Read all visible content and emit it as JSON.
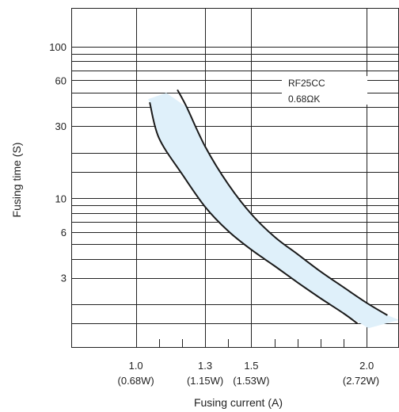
{
  "chart_data": {
    "type": "line",
    "xlabel": "Fusing current (A)",
    "ylabel": "Fusing time (S)",
    "x_scale": "linear",
    "y_scale": "log",
    "xlim": [
      0.72,
      2.14
    ],
    "ylim": [
      1.05,
      180
    ],
    "x_ticks": [
      {
        "value": 1.0,
        "label": "1.0",
        "sublabel": "(0.68W)"
      },
      {
        "value": 1.3,
        "label": "1.3",
        "sublabel": "(1.15W)"
      },
      {
        "value": 1.5,
        "label": "1.5",
        "sublabel": "(1.53W)"
      },
      {
        "value": 2.0,
        "label": "2.0",
        "sublabel": "(2.72W)"
      }
    ],
    "x_minor_ticks": [
      1.1,
      1.2,
      1.4,
      1.6,
      1.7,
      1.8,
      1.9
    ],
    "y_ticks": [
      {
        "value": 100,
        "label": "100"
      },
      {
        "value": 60,
        "label": "60"
      },
      {
        "value": 30,
        "label": "30"
      },
      {
        "value": 10,
        "label": "10"
      },
      {
        "value": 6,
        "label": "6"
      },
      {
        "value": 3,
        "label": "3"
      }
    ],
    "y_gridlines": [
      1.5,
      2,
      3,
      4,
      5,
      6,
      7,
      8,
      9,
      10,
      15,
      20,
      30,
      40,
      50,
      60,
      70,
      80,
      90,
      100
    ],
    "x_gridlines": [
      1.0,
      1.3,
      1.5,
      2.0
    ],
    "grid": true,
    "annotations": [
      "RF25CC",
      "0.68ΩK"
    ],
    "band_color": "#dff0fa",
    "line_color": "#1a1a1a",
    "series": [
      {
        "role": "upper",
        "x": [
          1.18,
          1.22,
          1.3,
          1.4,
          1.5,
          1.6,
          1.7,
          1.8,
          1.9,
          2.0,
          2.09
        ],
        "y": [
          52,
          40,
          22,
          12.4,
          7.9,
          5.6,
          4.3,
          3.3,
          2.6,
          2.05,
          1.7
        ]
      },
      {
        "role": "lower",
        "x": [
          1.06,
          1.1,
          1.2,
          1.3,
          1.4,
          1.5,
          1.6,
          1.7,
          1.8,
          1.9,
          1.96
        ],
        "y": [
          43,
          25,
          14.5,
          8.8,
          6.1,
          4.6,
          3.6,
          2.8,
          2.2,
          1.75,
          1.5
        ]
      }
    ]
  }
}
